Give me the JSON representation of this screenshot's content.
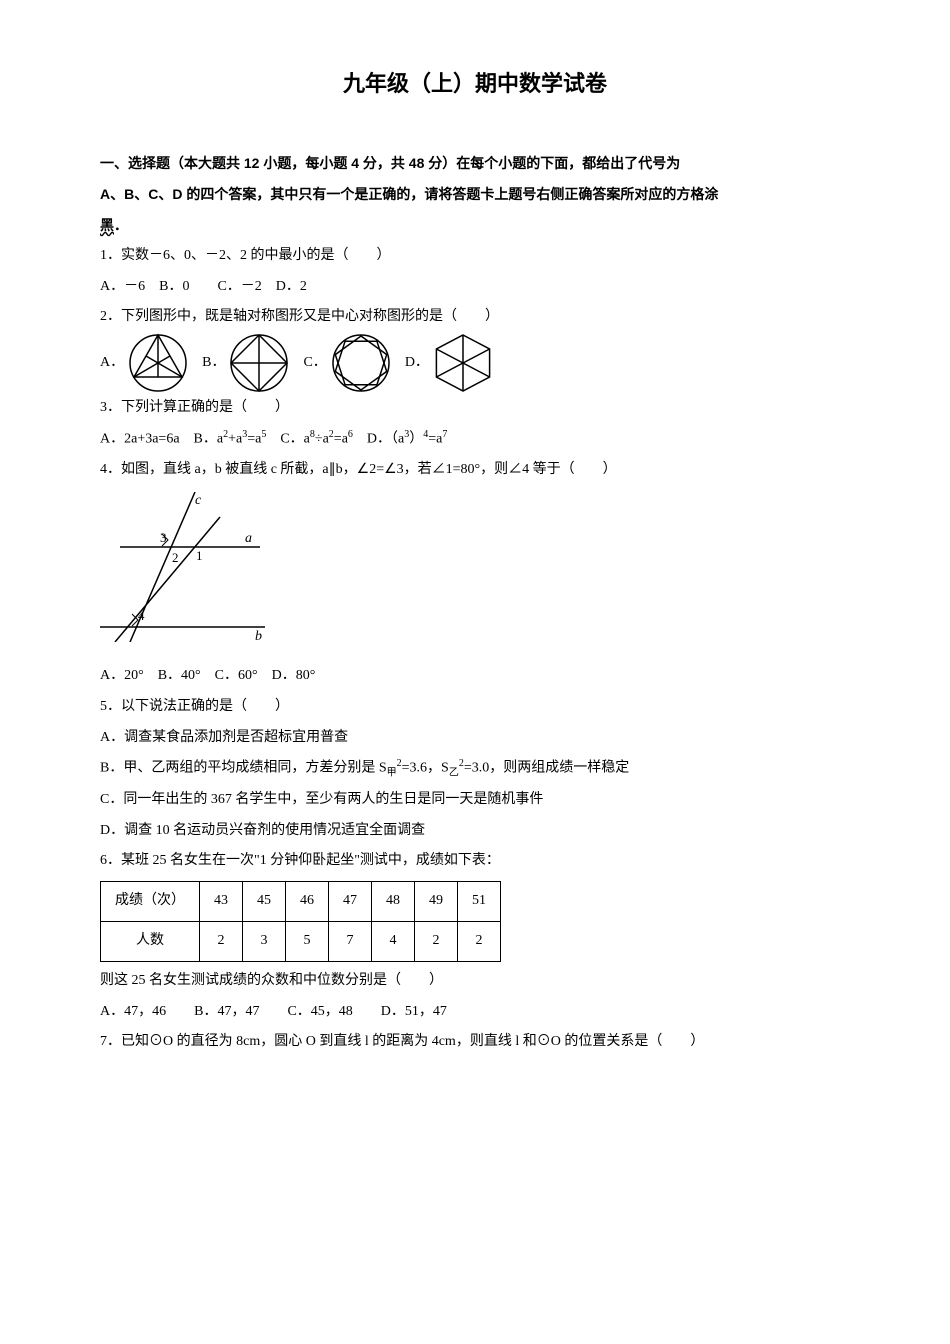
{
  "title": "九年级（上）期中数学试卷",
  "instructions": {
    "part1": "一、选择题（本大题共 12 小题，每小题 4 分，共 48 分）在每个小题的下面，都给出了代号为",
    "part2": "A、B、C、D 的四个答案，其中只有一个是正确的，请将答题卡上题号右侧正确答案所对应的方格涂",
    "part3": "黑"
  },
  "q1": {
    "stem": "1．实数－6、0、－2、2 的中最小的是（　　）",
    "opts": "A．－6　B．0　　C．－2　D．2"
  },
  "q2": {
    "stem": "2．下列图形中，既是轴对称图形又是中心对称图形的是（　　）",
    "A": "A．",
    "B": "B．",
    "C": "C．",
    "D": "D．",
    "shapes": {
      "circle_stroke": "#000000",
      "circle_fill": "none",
      "radius": 28,
      "svg_size": 60
    }
  },
  "q3": {
    "stem": "3．下列计算正确的是（　　）",
    "opts_html": "A．2a+3a=6a　B．a<sup>2</sup>+a<sup>3</sup>=a<sup>5</sup>　C．a<sup>8</sup>÷a<sup>2</sup>=a<sup>6</sup>　D．（a<sup>3</sup>）<sup>4</sup>=a<sup>7</sup>"
  },
  "q4": {
    "stem": "4．如图，直线 a，b 被直线 c 所截，a∥b，∠2=∠3，若∠1=80°，则∠4 等于（　　）",
    "opts": "A．20°　B．40°　C．60°　D．80°",
    "figure": {
      "width": 170,
      "height": 150,
      "stroke": "#000000",
      "labels": {
        "c": "c",
        "a": "a",
        "b": "b",
        "n1": "1",
        "n2": "2",
        "n3": "3",
        "n4": "4"
      }
    }
  },
  "q5": {
    "stem": "5．以下说法正确的是（　　）",
    "A": "A．调查某食品添加剂是否超标宜用普查",
    "B_html": "B．甲、乙两组的平均成绩相同，方差分别是 S<sub>甲</sub><sup>2</sup>=3.6，S<sub>乙</sub><sup>2</sup>=3.0，则两组成绩一样稳定",
    "C": "C．同一年出生的 367 名学生中，至少有两人的生日是同一天是随机事件",
    "D": "D．调查 10 名运动员兴奋剂的使用情况适宜全面调查"
  },
  "q6": {
    "stem": "6．某班 25 名女生在一次\"1 分钟仰卧起坐\"测试中，成绩如下表：",
    "table": {
      "header": [
        "成绩（次）",
        "43",
        "45",
        "46",
        "47",
        "48",
        "49",
        "51"
      ],
      "row": [
        "人数",
        "2",
        "3",
        "5",
        "7",
        "4",
        "2",
        "2"
      ]
    },
    "after": "则这 25 名女生测试成绩的众数和中位数分别是（　　）",
    "opts": "A．47，46　　B．47，47　　C．45，48　　D．51，47"
  },
  "q7": {
    "stem": "7．已知⊙O 的直径为 8cm，圆心 O 到直线 l 的距离为 4cm，则直线 l 和⊙O 的位置关系是（　　）"
  }
}
